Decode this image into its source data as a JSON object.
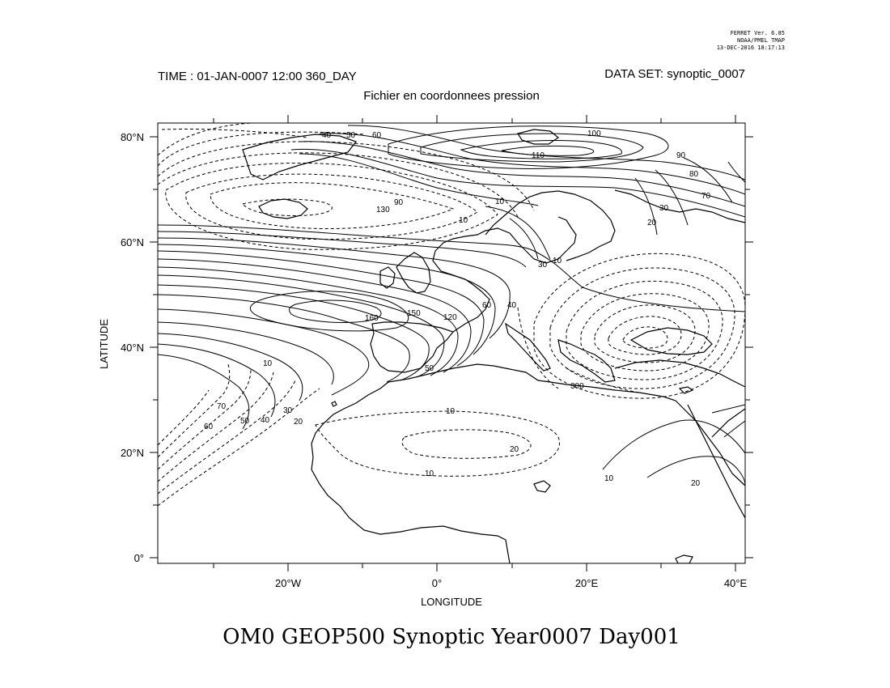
{
  "ferret": {
    "version": "FERRET Ver. 6.85",
    "org": "NOAA/PMEL TMAP",
    "date": "13-DEC-2016 18:17:13"
  },
  "header": {
    "time": "TIME : 01-JAN-0007 12:00 360_DAY",
    "dataset": "DATA SET: synoptic_0007",
    "subtitle": "Fichier en coordonnees pression"
  },
  "axes": {
    "xlabel": "LONGITUDE",
    "ylabel": "LATITUDE",
    "x_ticks": [
      "20°W",
      "0°",
      "20°E",
      "40°E"
    ],
    "y_ticks": [
      "80°N",
      "60°N",
      "40°N",
      "20°N",
      "0°"
    ]
  },
  "contour_labels": {
    "l40": "40",
    "l50": "50",
    "l60": "60",
    "l100": "100",
    "l110": "110",
    "l90": "90",
    "l80": "80",
    "l70": "70",
    "l30": "30",
    "l20": "20",
    "l10a": "10",
    "l130": "130",
    "l160": "160",
    "l150": "150",
    "l120": "120",
    "l10b": "10",
    "l50b": "50",
    "l10c": "10",
    "l20b": "20",
    "l10d": "10",
    "l70b": "70",
    "l60b": "60",
    "l50c": "50",
    "l40b": "40",
    "l30b": "30",
    "l20c": "20",
    "l10e": "10",
    "l20d": "20",
    "l10f": "10",
    "l90b": "90",
    "l300": "300",
    "l60c": "60",
    "l40c": "40",
    "l30c": "30",
    "l10g": "10"
  },
  "title": "OM0 GEOP500 Synoptic Year0007 Day001"
}
